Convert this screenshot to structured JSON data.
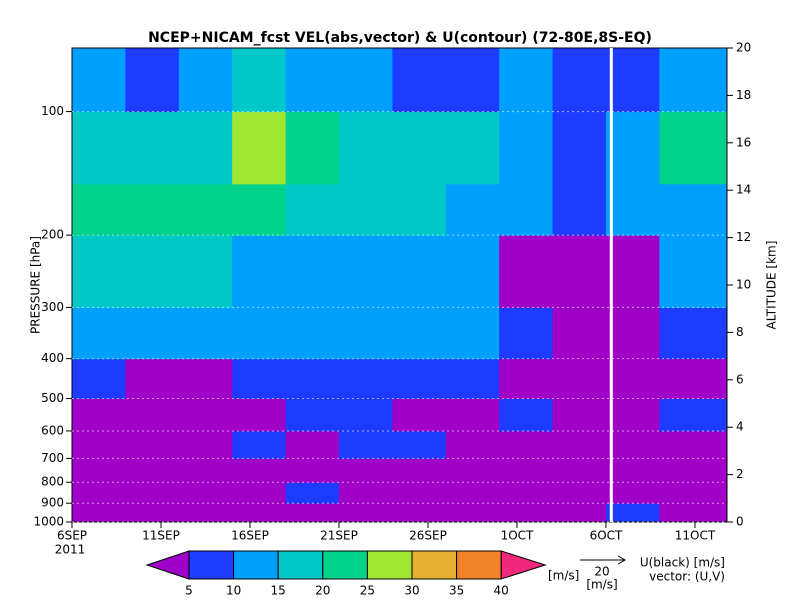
{
  "chart_data": {
    "type": "heatmap",
    "title": "NCEP+NICAM_fcst VEL(abs,vector) & U(contour)   (72-80E,8S-EQ)",
    "y_label": "PRESSURE [hPa]",
    "y2_label": "ALTITUDE [km]",
    "year_label": "2011",
    "xlim": [
      0,
      36.8
    ],
    "xticks": [
      {
        "value": 0,
        "label": "6SEP"
      },
      {
        "value": 5,
        "label": "11SEP"
      },
      {
        "value": 10,
        "label": "16SEP"
      },
      {
        "value": 15,
        "label": "21SEP"
      },
      {
        "value": 20,
        "label": "26SEP"
      },
      {
        "value": 25,
        "label": "1OCT"
      },
      {
        "value": 30,
        "label": "6OCT"
      },
      {
        "value": 35,
        "label": "11OCT"
      }
    ],
    "ylim": [
      1000,
      70
    ],
    "log_y": true,
    "yticks": [
      100,
      200,
      300,
      400,
      500,
      600,
      700,
      800,
      900,
      1000
    ],
    "y2lim": [
      0,
      20
    ],
    "y2ticks": [
      0,
      2,
      4,
      6,
      8,
      10,
      12,
      14,
      16,
      18,
      20
    ],
    "x_edges": [
      0,
      3,
      6,
      9,
      12,
      15,
      18,
      21,
      24,
      27,
      30,
      33,
      36.8
    ],
    "y_edges": [
      1000,
      900,
      800,
      700,
      600,
      500,
      400,
      300,
      200,
      150,
      100,
      70
    ],
    "values": [
      [
        4,
        3,
        4,
        3,
        4,
        4,
        3,
        4,
        4,
        3,
        6,
        3
      ],
      [
        4,
        4,
        3,
        4,
        5,
        4,
        3,
        4,
        3,
        4,
        4,
        3
      ],
      [
        4,
        3,
        4,
        3,
        4,
        3,
        4,
        4,
        3,
        4,
        3,
        4
      ],
      [
        3,
        4,
        3,
        6,
        4,
        7,
        6,
        4,
        3,
        4,
        3,
        4
      ],
      [
        4,
        3,
        4,
        3,
        7,
        8,
        4,
        3,
        8,
        4,
        3,
        6
      ],
      [
        8,
        4,
        3,
        8,
        8,
        9,
        8,
        7,
        4,
        3,
        3,
        4
      ],
      [
        12,
        12,
        11,
        10,
        12,
        11,
        10,
        11,
        7,
        4,
        3,
        7
      ],
      [
        18,
        16,
        15,
        14,
        13,
        12,
        13,
        12,
        4,
        3,
        3,
        12
      ],
      [
        22,
        24,
        20,
        22,
        19,
        18,
        16,
        13,
        12,
        8,
        11,
        14
      ],
      [
        18,
        19,
        17,
        27,
        21,
        18,
        17,
        16,
        13,
        9,
        12,
        24
      ],
      [
        12,
        9,
        13,
        18,
        14,
        10,
        8,
        9,
        11,
        7,
        8,
        13
      ]
    ],
    "levels": [
      5,
      10,
      15,
      20,
      25,
      30,
      35,
      40
    ],
    "colors": [
      "#a000c8",
      "#1e3cff",
      "#00a0ff",
      "#00c8c8",
      "#00d28c",
      "#a0e632",
      "#e6af2d",
      "#f08228",
      "#f0287d"
    ],
    "colorbar_unit": "[m/s]",
    "vector_ref": "20",
    "vector_unit": "[m/s]",
    "legend_u": "U(black) [m/s]",
    "legend_vector": "vector: (U,V)"
  }
}
